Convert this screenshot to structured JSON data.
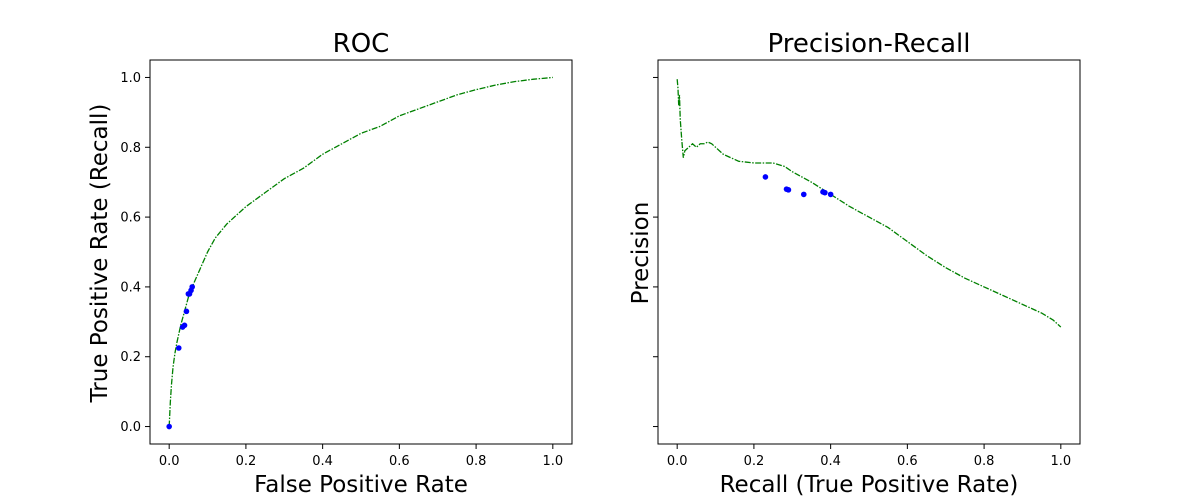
{
  "chart_data": [
    {
      "type": "line",
      "title": "ROC",
      "xlabel": "False Positive Rate",
      "ylabel": "True Positive Rate (Recall)",
      "xlim": [
        -0.05,
        1.05
      ],
      "ylim": [
        -0.05,
        1.05
      ],
      "xticks": [
        0.0,
        0.2,
        0.4,
        0.6,
        0.8,
        1.0
      ],
      "yticks": [
        0.0,
        0.2,
        0.4,
        0.6,
        0.8,
        1.0
      ],
      "xtick_labels": [
        "0.0",
        "0.2",
        "0.4",
        "0.6",
        "0.8",
        "1.0"
      ],
      "ytick_labels": [
        "0.0",
        "0.2",
        "0.4",
        "0.6",
        "0.8",
        "1.0"
      ],
      "grid": false,
      "series": [
        {
          "kind": "line",
          "color": "#008000",
          "style": "dash-dot",
          "x": [
            0.0,
            0.003,
            0.006,
            0.01,
            0.015,
            0.02,
            0.03,
            0.04,
            0.05,
            0.06,
            0.08,
            0.1,
            0.12,
            0.15,
            0.2,
            0.25,
            0.3,
            0.35,
            0.4,
            0.45,
            0.5,
            0.55,
            0.6,
            0.65,
            0.7,
            0.75,
            0.8,
            0.85,
            0.9,
            0.95,
            1.0
          ],
          "y": [
            0.0,
            0.07,
            0.12,
            0.17,
            0.21,
            0.24,
            0.29,
            0.33,
            0.37,
            0.4,
            0.45,
            0.5,
            0.54,
            0.58,
            0.63,
            0.67,
            0.71,
            0.74,
            0.78,
            0.81,
            0.84,
            0.86,
            0.89,
            0.91,
            0.93,
            0.95,
            0.965,
            0.978,
            0.988,
            0.995,
            1.0
          ]
        },
        {
          "kind": "scatter",
          "color": "#0000ff",
          "x": [
            0.0,
            0.025,
            0.035,
            0.04,
            0.045,
            0.05,
            0.053,
            0.057,
            0.06
          ],
          "y": [
            0.0,
            0.225,
            0.285,
            0.29,
            0.33,
            0.38,
            0.38,
            0.39,
            0.4
          ]
        }
      ]
    },
    {
      "type": "line",
      "title": "Precision-Recall",
      "xlabel": "Recall (True Positive Rate)",
      "ylabel": "Precision",
      "xlim": [
        -0.05,
        1.05
      ],
      "ylim": [
        -0.05,
        1.05
      ],
      "xticks": [
        0.0,
        0.2,
        0.4,
        0.6,
        0.8,
        1.0
      ],
      "yticks": [
        0.0,
        0.2,
        0.4,
        0.6,
        0.8,
        1.0
      ],
      "xtick_labels": [
        "0.0",
        "0.2",
        "0.4",
        "0.6",
        "0.8",
        "1.0"
      ],
      "ytick_labels": [],
      "grid": false,
      "series": [
        {
          "kind": "line",
          "color": "#008000",
          "style": "dash-dot",
          "x": [
            0.0,
            0.002,
            0.004,
            0.006,
            0.008,
            0.012,
            0.016,
            0.02,
            0.03,
            0.04,
            0.05,
            0.06,
            0.07,
            0.08,
            0.09,
            0.1,
            0.12,
            0.14,
            0.16,
            0.2,
            0.25,
            0.28,
            0.3,
            0.35,
            0.4,
            0.45,
            0.5,
            0.55,
            0.6,
            0.65,
            0.7,
            0.75,
            0.8,
            0.85,
            0.9,
            0.95,
            0.98,
            1.0
          ],
          "y": [
            0.995,
            0.97,
            0.92,
            0.95,
            0.88,
            0.82,
            0.77,
            0.79,
            0.8,
            0.81,
            0.8,
            0.81,
            0.81,
            0.815,
            0.81,
            0.8,
            0.78,
            0.77,
            0.76,
            0.755,
            0.755,
            0.745,
            0.73,
            0.7,
            0.665,
            0.63,
            0.6,
            0.57,
            0.53,
            0.49,
            0.455,
            0.425,
            0.4,
            0.375,
            0.35,
            0.325,
            0.305,
            0.285
          ]
        },
        {
          "kind": "scatter",
          "color": "#0000ff",
          "x": [
            0.23,
            0.285,
            0.29,
            0.33,
            0.38,
            0.385,
            0.4
          ],
          "y": [
            0.715,
            0.68,
            0.678,
            0.665,
            0.672,
            0.67,
            0.665
          ]
        }
      ]
    }
  ]
}
